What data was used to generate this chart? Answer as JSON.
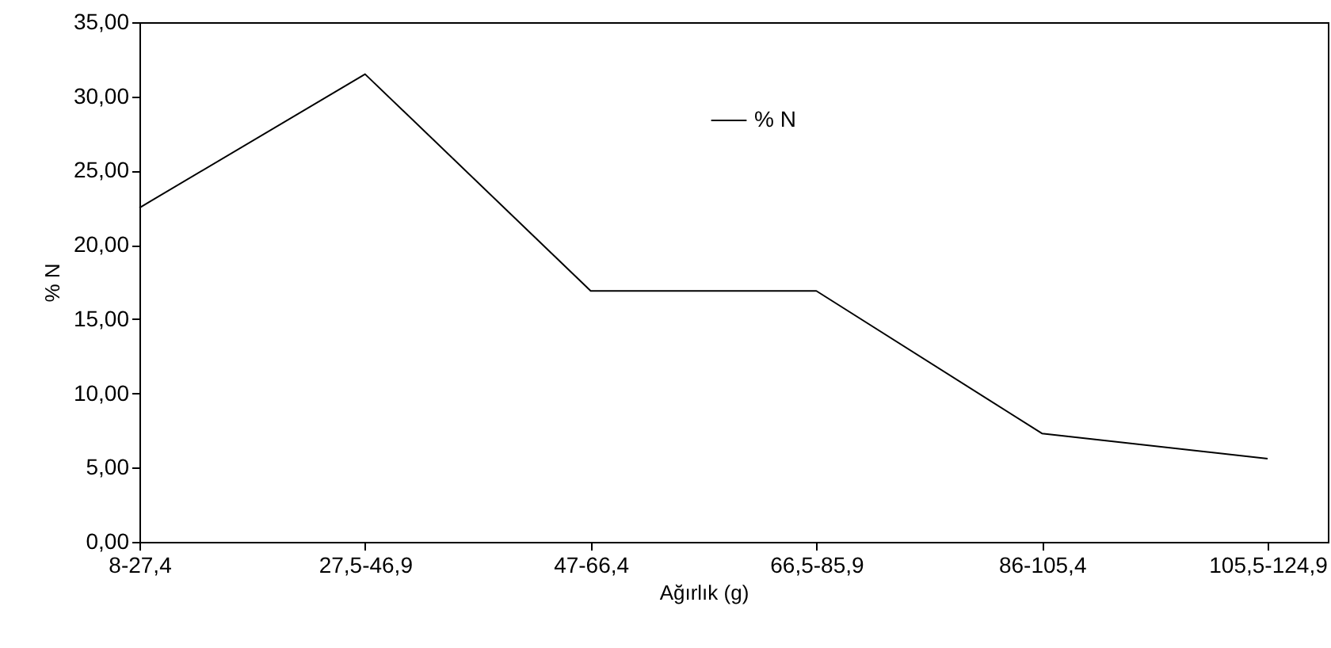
{
  "chart_data": {
    "type": "line",
    "xlabel": "Ağırlık (g)",
    "ylabel": "% N",
    "categories": [
      "8-27,4",
      "27,5-46,9",
      "47-66,4",
      "66,5-85,9",
      "86-105,4",
      "105,5-124,9"
    ],
    "series": [
      {
        "name": "% N",
        "color": "#000000",
        "values": [
          22.5,
          31.5,
          16.9,
          16.9,
          7.3,
          5.6
        ]
      }
    ],
    "ylim": [
      0,
      35
    ],
    "yticks": [
      {
        "value": 0,
        "label": "0,00"
      },
      {
        "value": 5,
        "label": "5,00"
      },
      {
        "value": 10,
        "label": "10,00"
      },
      {
        "value": 15,
        "label": "15,00"
      },
      {
        "value": 20,
        "label": "20,00"
      },
      {
        "value": 25,
        "label": "25,00"
      },
      {
        "value": 30,
        "label": "30,00"
      },
      {
        "value": 35,
        "label": "35,00"
      }
    ],
    "grid": false,
    "legend": "top",
    "marker": "none",
    "line_style": "solid"
  }
}
